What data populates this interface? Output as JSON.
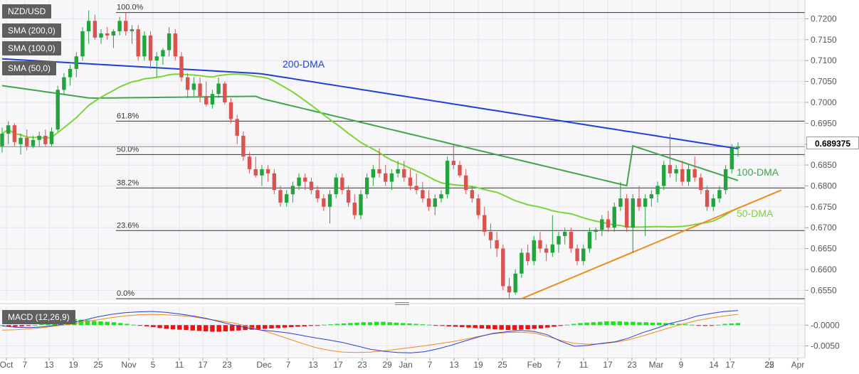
{
  "legend": {
    "symbol": "NZD/USD",
    "sma200": "SMA (200,0)",
    "sma100": "SMA (100,0)",
    "sma50": "SMA (50,0)",
    "macd": "MACD (12,26,9)"
  },
  "current_price": "0.689375",
  "colors": {
    "bull": "#22a33b",
    "bear": "#d9534f",
    "sma200": "#1f3fd6",
    "sma100": "#3fa64a",
    "sma50": "#7ad634",
    "trendline": "#f08a1c",
    "macd_line": "#2b3ed6",
    "signal_line": "#f08a1c",
    "hist_pos": "#22e022",
    "hist_neg": "#ee1111"
  },
  "chart_data": [
    {
      "type": "candlestick",
      "title": "NZD/USD",
      "x_ticks": [
        "Oct",
        "7",
        "13",
        "19",
        "25",
        "Nov",
        "5",
        "11",
        "17",
        "23",
        "Dec",
        "7",
        "13",
        "17",
        "23",
        "29",
        "Jan",
        "7",
        "13",
        "19",
        "25",
        "Feb",
        "7",
        "11",
        "17",
        "23",
        "Mar",
        "9",
        "14",
        "17",
        "22",
        "25",
        "Apr"
      ],
      "y_ticks": [
        "0.7200",
        "0.7150",
        "0.7100",
        "0.7050",
        "0.7000",
        "0.6950",
        "0.6900",
        "0.6850",
        "0.6800",
        "0.6750",
        "0.6700",
        "0.6650",
        "0.6600",
        "0.6550"
      ],
      "ylim": [
        0.6525,
        0.7245
      ],
      "fibonacci": [
        {
          "label": "100.0%",
          "value": 0.7215
        },
        {
          "label": "61.8%",
          "value": 0.6955
        },
        {
          "label": "50.0%",
          "value": 0.6875
        },
        {
          "label": "38.2%",
          "value": 0.6795
        },
        {
          "label": "23.6%",
          "value": 0.6693
        },
        {
          "label": "0.0%",
          "value": 0.653
        }
      ],
      "last_price_line": 0.6894,
      "annotations": [
        "200-DMA",
        "100-DMA",
        "50-DMA"
      ],
      "grid": true,
      "candles": [
        [
          0.6895,
          0.694,
          0.688,
          0.6925
        ],
        [
          0.6925,
          0.6955,
          0.69,
          0.6945
        ],
        [
          0.6945,
          0.695,
          0.6895,
          0.6905
        ],
        [
          0.69,
          0.6925,
          0.6875,
          0.6915
        ],
        [
          0.6915,
          0.6935,
          0.6885,
          0.6895
        ],
        [
          0.6895,
          0.692,
          0.689,
          0.691
        ],
        [
          0.691,
          0.693,
          0.6895,
          0.692
        ],
        [
          0.692,
          0.6935,
          0.6895,
          0.69
        ],
        [
          0.69,
          0.694,
          0.6895,
          0.693
        ],
        [
          0.6935,
          0.704,
          0.693,
          0.703
        ],
        [
          0.703,
          0.707,
          0.702,
          0.706
        ],
        [
          0.706,
          0.709,
          0.704,
          0.708
        ],
        [
          0.708,
          0.712,
          0.706,
          0.711
        ],
        [
          0.711,
          0.718,
          0.71,
          0.717
        ],
        [
          0.717,
          0.722,
          0.714,
          0.7195
        ],
        [
          0.7195,
          0.721,
          0.715,
          0.7155
        ],
        [
          0.7155,
          0.7175,
          0.714,
          0.7165
        ],
        [
          0.7165,
          0.718,
          0.715,
          0.716
        ],
        [
          0.716,
          0.7175,
          0.713,
          0.717
        ],
        [
          0.717,
          0.7205,
          0.716,
          0.7195
        ],
        [
          0.7195,
          0.7215,
          0.716,
          0.717
        ],
        [
          0.717,
          0.7185,
          0.714,
          0.7175
        ],
        [
          0.7175,
          0.7185,
          0.71,
          0.711
        ],
        [
          0.711,
          0.717,
          0.71,
          0.716
        ],
        [
          0.716,
          0.717,
          0.708,
          0.71
        ],
        [
          0.71,
          0.712,
          0.706,
          0.711
        ],
        [
          0.711,
          0.713,
          0.709,
          0.7125
        ],
        [
          0.7125,
          0.718,
          0.711,
          0.7165
        ],
        [
          0.7165,
          0.7175,
          0.71,
          0.711
        ],
        [
          0.711,
          0.712,
          0.705,
          0.706
        ],
        [
          0.706,
          0.707,
          0.701,
          0.703
        ],
        [
          0.703,
          0.706,
          0.7015,
          0.7045
        ],
        [
          0.7045,
          0.706,
          0.7,
          0.7015
        ],
        [
          0.7015,
          0.705,
          0.699,
          0.6995
        ],
        [
          0.6995,
          0.703,
          0.6985,
          0.702
        ],
        [
          0.702,
          0.706,
          0.701,
          0.7045
        ],
        [
          0.7045,
          0.705,
          0.6995,
          0.7
        ],
        [
          0.7,
          0.701,
          0.695,
          0.696
        ],
        [
          0.696,
          0.697,
          0.69,
          0.692
        ],
        [
          0.692,
          0.693,
          0.686,
          0.687
        ],
        [
          0.687,
          0.688,
          0.683,
          0.684
        ],
        [
          0.684,
          0.687,
          0.682,
          0.6825
        ],
        [
          0.6825,
          0.685,
          0.68,
          0.684
        ],
        [
          0.684,
          0.685,
          0.681,
          0.683
        ],
        [
          0.683,
          0.684,
          0.678,
          0.679
        ],
        [
          0.679,
          0.68,
          0.675,
          0.676
        ],
        [
          0.676,
          0.679,
          0.675,
          0.678
        ],
        [
          0.678,
          0.681,
          0.676,
          0.68
        ],
        [
          0.68,
          0.683,
          0.679,
          0.682
        ],
        [
          0.682,
          0.683,
          0.679,
          0.681
        ],
        [
          0.681,
          0.682,
          0.678,
          0.679
        ],
        [
          0.679,
          0.68,
          0.676,
          0.677
        ],
        [
          0.677,
          0.678,
          0.674,
          0.675
        ],
        [
          0.675,
          0.679,
          0.671,
          0.678
        ],
        [
          0.678,
          0.683,
          0.677,
          0.682
        ],
        [
          0.682,
          0.683,
          0.678,
          0.679
        ],
        [
          0.679,
          0.68,
          0.675,
          0.676
        ],
        [
          0.676,
          0.678,
          0.672,
          0.673
        ],
        [
          0.673,
          0.679,
          0.672,
          0.678
        ],
        [
          0.678,
          0.683,
          0.677,
          0.682
        ],
        [
          0.682,
          0.685,
          0.68,
          0.684
        ],
        [
          0.684,
          0.689,
          0.682,
          0.683
        ],
        [
          0.683,
          0.685,
          0.68,
          0.681
        ],
        [
          0.681,
          0.684,
          0.679,
          0.683
        ],
        [
          0.683,
          0.686,
          0.682,
          0.684
        ],
        [
          0.684,
          0.686,
          0.681,
          0.682
        ],
        [
          0.682,
          0.684,
          0.679,
          0.68
        ],
        [
          0.68,
          0.683,
          0.678,
          0.679
        ],
        [
          0.679,
          0.681,
          0.676,
          0.677
        ],
        [
          0.677,
          0.679,
          0.674,
          0.675
        ],
        [
          0.675,
          0.678,
          0.673,
          0.677
        ],
        [
          0.677,
          0.679,
          0.676,
          0.678
        ],
        [
          0.678,
          0.687,
          0.677,
          0.686
        ],
        [
          0.686,
          0.69,
          0.684,
          0.685
        ],
        [
          0.685,
          0.686,
          0.682,
          0.6825
        ],
        [
          0.6825,
          0.684,
          0.678,
          0.679
        ],
        [
          0.679,
          0.68,
          0.676,
          0.677
        ],
        [
          0.677,
          0.678,
          0.672,
          0.673
        ],
        [
          0.673,
          0.675,
          0.668,
          0.669
        ],
        [
          0.669,
          0.671,
          0.665,
          0.667
        ],
        [
          0.667,
          0.669,
          0.663,
          0.665
        ],
        [
          0.665,
          0.666,
          0.655,
          0.656
        ],
        [
          0.656,
          0.658,
          0.653,
          0.6545
        ],
        [
          0.6545,
          0.66,
          0.654,
          0.659
        ],
        [
          0.659,
          0.665,
          0.658,
          0.664
        ],
        [
          0.664,
          0.666,
          0.661,
          0.662
        ],
        [
          0.662,
          0.668,
          0.661,
          0.667
        ],
        [
          0.667,
          0.669,
          0.664,
          0.665
        ],
        [
          0.665,
          0.666,
          0.662,
          0.664
        ],
        [
          0.664,
          0.673,
          0.663,
          0.666
        ],
        [
          0.666,
          0.669,
          0.664,
          0.668
        ],
        [
          0.668,
          0.67,
          0.666,
          0.669
        ],
        [
          0.669,
          0.67,
          0.664,
          0.665
        ],
        [
          0.665,
          0.666,
          0.661,
          0.662
        ],
        [
          0.662,
          0.666,
          0.661,
          0.665
        ],
        [
          0.665,
          0.67,
          0.664,
          0.669
        ],
        [
          0.669,
          0.67,
          0.667,
          0.6695
        ],
        [
          0.6695,
          0.673,
          0.668,
          0.672
        ],
        [
          0.672,
          0.674,
          0.669,
          0.67
        ],
        [
          0.67,
          0.676,
          0.669,
          0.675
        ],
        [
          0.675,
          0.681,
          0.674,
          0.677
        ],
        [
          0.677,
          0.678,
          0.669,
          0.67
        ],
        [
          0.67,
          0.678,
          0.664,
          0.677
        ],
        [
          0.677,
          0.68,
          0.674,
          0.675
        ],
        [
          0.675,
          0.678,
          0.668,
          0.677
        ],
        [
          0.677,
          0.679,
          0.675,
          0.678
        ],
        [
          0.678,
          0.681,
          0.676,
          0.68
        ],
        [
          0.68,
          0.686,
          0.679,
          0.685
        ],
        [
          0.685,
          0.6925,
          0.682,
          0.683
        ],
        [
          0.683,
          0.685,
          0.681,
          0.684
        ],
        [
          0.684,
          0.686,
          0.68,
          0.681
        ],
        [
          0.681,
          0.685,
          0.68,
          0.684
        ],
        [
          0.684,
          0.687,
          0.681,
          0.682
        ],
        [
          0.682,
          0.683,
          0.678,
          0.679
        ],
        [
          0.679,
          0.68,
          0.674,
          0.675
        ],
        [
          0.675,
          0.678,
          0.674,
          0.677
        ],
        [
          0.677,
          0.68,
          0.676,
          0.679
        ],
        [
          0.679,
          0.685,
          0.678,
          0.684
        ],
        [
          0.684,
          0.69,
          0.683,
          0.689
        ],
        [
          0.689,
          0.6905,
          0.687,
          0.6894
        ]
      ]
    },
    {
      "type": "macd",
      "title": "MACD (12,26,9)",
      "y_ticks": [
        "-0.0000",
        "-0.0050"
      ],
      "ylim": [
        -0.0075,
        0.0045
      ],
      "histogram": [
        0,
        -0.0003,
        -0.0004,
        -0.0003,
        -0.0002,
        0,
        0.0002,
        0.0005,
        0.0008,
        0.0012,
        0.0014,
        0.0015,
        0.0013,
        0.0012,
        0.001,
        0.0009,
        0.0008,
        0.0007,
        0.0005,
        0.0003,
        0.0001,
        -0.0001,
        -0.0003,
        -0.0005,
        -0.0007,
        -0.0009,
        -0.001,
        -0.0011,
        -0.0012,
        -0.0013,
        -0.0014,
        -0.0015,
        -0.0016,
        -0.0016,
        -0.0015,
        -0.0014,
        -0.0013,
        -0.0012,
        -0.0011,
        -0.001,
        -0.0009,
        -0.0008,
        -0.0007,
        -0.0006,
        -0.0005,
        -0.0004,
        -0.0003,
        -0.0002,
        -0.0001,
        0.0001,
        0.0002,
        0.0003,
        0.0004,
        0.0005,
        0.0006,
        0.0007,
        0.0007,
        0.0008,
        0.0008,
        0.0007,
        0.0006,
        0.0005,
        0.0004,
        0.0003,
        0.0002,
        0.0001,
        -0.0001,
        -0.0002,
        -0.0003,
        -0.0004,
        -0.0005,
        -0.0006,
        -0.0007,
        -0.0008,
        -0.0009,
        -0.001,
        -0.0011,
        -0.0012,
        -0.0012,
        -0.0011,
        -0.001,
        -0.0009,
        -0.0008,
        -0.0006,
        -0.0004,
        -0.0002,
        0.0001,
        0.0003,
        0.0005,
        0.0006,
        0.0007,
        0.0008,
        0.0009,
        0.0009,
        0.0009,
        0.0008,
        0.0008,
        0.0007,
        0.0007,
        0.0006,
        0.0006,
        0.0005,
        0.0004,
        0.0003,
        0.0002,
        0.0001,
        -0.0001,
        -0.0002,
        -0.0001,
        0.0001,
        0.0003,
        0.0004,
        0.0005
      ],
      "macd_line": [
        -0.0002,
        -0.0005,
        -0.0006,
        -0.0004,
        0,
        0.0005,
        0.0012,
        0.002,
        0.0026,
        0.003,
        0.0032,
        0.0033,
        0.0031,
        0.0027,
        0.0022,
        0.0016,
        0.0008,
        0,
        -0.0007,
        -0.0012,
        -0.0015,
        -0.0019,
        -0.0025,
        -0.0031,
        -0.0036,
        -0.0042,
        -0.005,
        -0.0058,
        -0.0063,
        -0.0066,
        -0.0067,
        -0.0064,
        -0.0057,
        -0.0048,
        -0.0038,
        -0.0028,
        -0.002,
        -0.0016,
        -0.0013,
        -0.0015,
        -0.0023,
        -0.0039,
        -0.0051,
        -0.0049,
        -0.0044,
        -0.004,
        -0.0031,
        -0.0018,
        -0.0008,
        0.0004,
        0.0012,
        0.0022,
        0.0028,
        0.0033,
        0.0035
      ],
      "signal_line": [
        -0.0012,
        -0.0011,
        -0.0009,
        -0.0006,
        -0.0002,
        0.0002,
        0.0008,
        0.0013,
        0.0018,
        0.0022,
        0.0025,
        0.0026,
        0.0025,
        0.0023,
        0.002,
        0.0015,
        0.001,
        0.0005,
        -0.0003,
        -0.0012,
        -0.0022,
        -0.0033,
        -0.0044,
        -0.0054,
        -0.0061,
        -0.0065,
        -0.0066,
        -0.0065,
        -0.0062,
        -0.0058,
        -0.0054,
        -0.005,
        -0.0045,
        -0.004,
        -0.0034,
        -0.0027,
        -0.0021,
        -0.0018,
        -0.0017,
        -0.0019,
        -0.0027,
        -0.0037,
        -0.0044,
        -0.0046,
        -0.0045,
        -0.0041,
        -0.0035,
        -0.0026,
        -0.0016,
        -0.0006,
        0.0003,
        0.0011,
        0.0017,
        0.0022,
        0.0026
      ]
    }
  ]
}
